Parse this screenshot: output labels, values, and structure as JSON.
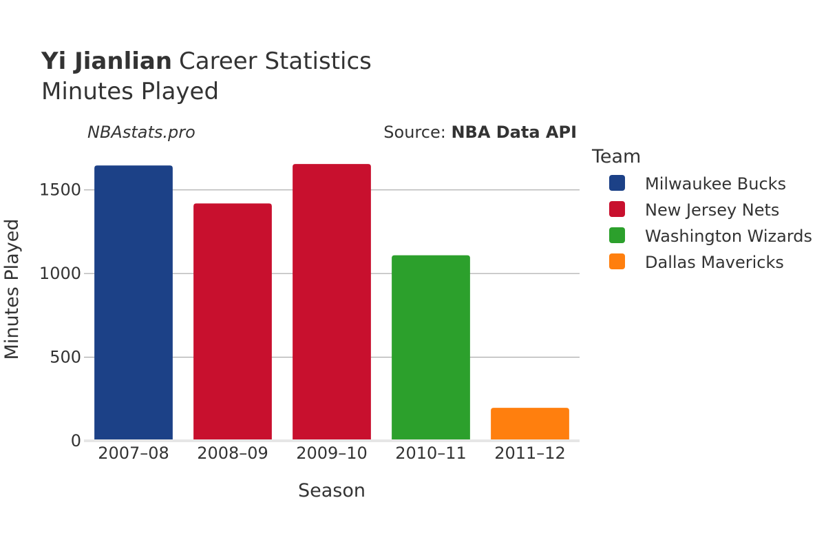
{
  "chart_data": {
    "type": "bar",
    "title_bold": "Yi Jianlian",
    "title_rest": "Career Statistics",
    "subtitle": "Minutes Played",
    "watermark": "NBAstats.pro",
    "source_prefix": "Source: ",
    "source_name": "NBA Data API",
    "xlabel": "Season",
    "ylabel": "Minutes Played",
    "ylim": [
      0,
      1750
    ],
    "yticks": [
      0,
      500,
      1000,
      1500
    ],
    "grid": true,
    "legend_title": "Team",
    "legend_position": "right",
    "categories": [
      "2007–08",
      "2008–09",
      "2009–10",
      "2010–11",
      "2011–12"
    ],
    "bars": [
      {
        "season": "2007–08",
        "team": "Milwaukee Bucks",
        "value": 1646
      },
      {
        "season": "2008–09",
        "team": "New Jersey Nets",
        "value": 1419
      },
      {
        "season": "2009–10",
        "team": "New Jersey Nets",
        "value": 1655
      },
      {
        "season": "2010–11",
        "team": "Washington Wizards",
        "value": 1109
      },
      {
        "season": "2011–12",
        "team": "Dallas Mavericks",
        "value": 197
      }
    ],
    "teams": [
      {
        "name": "Milwaukee Bucks",
        "color": "#1c4187"
      },
      {
        "name": "New Jersey Nets",
        "color": "#c8102e"
      },
      {
        "name": "Washington Wizards",
        "color": "#2ca02c"
      },
      {
        "name": "Dallas Mavericks",
        "color": "#ff7f0e"
      }
    ]
  }
}
